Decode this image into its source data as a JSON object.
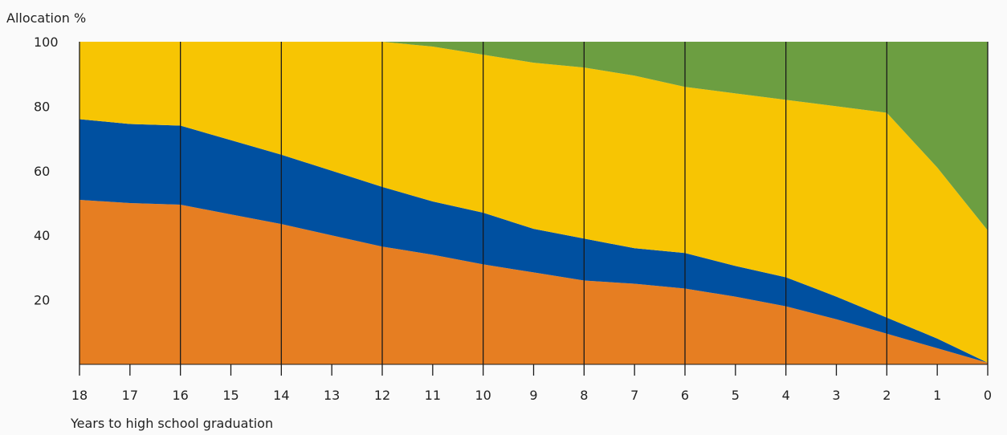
{
  "chart_data": {
    "type": "area",
    "stacked": true,
    "ylabel": "Allocation %",
    "xlabel": "Years to high school graduation",
    "x": [
      18,
      17,
      16,
      15,
      14,
      13,
      12,
      11,
      10,
      9,
      8,
      7,
      6,
      5,
      4,
      3,
      2,
      1,
      0
    ],
    "ylim": [
      0,
      100
    ],
    "xlim": [
      18,
      0
    ],
    "x_ticks": [
      "18",
      "17",
      "16",
      "15",
      "14",
      "13",
      "12",
      "11",
      "10",
      "9",
      "8",
      "7",
      "6",
      "5",
      "4",
      "3",
      "2",
      "1",
      "0"
    ],
    "y_ticks": [
      "20",
      "40",
      "60",
      "80",
      "100"
    ],
    "y_tick_values": [
      20,
      40,
      60,
      80,
      100
    ],
    "vertical_lines_at": [
      18,
      16,
      14,
      12,
      10,
      8,
      6,
      4,
      2,
      0
    ],
    "series": [
      {
        "color": "#e67e22",
        "values": [
          51,
          50,
          49.5,
          46.5,
          43.5,
          40,
          36.5,
          34,
          31,
          28.5,
          26,
          25,
          23.5,
          21,
          18,
          14,
          9.5,
          5,
          0.5
        ]
      },
      {
        "color": "#0050a0",
        "values": [
          25,
          24.5,
          24.5,
          23,
          21.5,
          20,
          18.5,
          16.5,
          16,
          13.5,
          13,
          11,
          11,
          9.5,
          9,
          7,
          5,
          3,
          0
        ]
      },
      {
        "color": "#f7c503",
        "values": [
          24,
          25.5,
          26,
          30.5,
          35,
          40,
          45,
          48,
          49,
          51.5,
          53,
          53.5,
          51.5,
          53.5,
          55,
          59,
          63.5,
          53,
          41
        ]
      },
      {
        "color": "#6c9e41",
        "values": [
          0,
          0,
          0,
          0,
          0,
          0,
          0,
          1.5,
          4,
          6.5,
          8,
          10.5,
          14,
          16,
          18,
          20,
          22,
          39,
          58.5
        ]
      }
    ]
  }
}
